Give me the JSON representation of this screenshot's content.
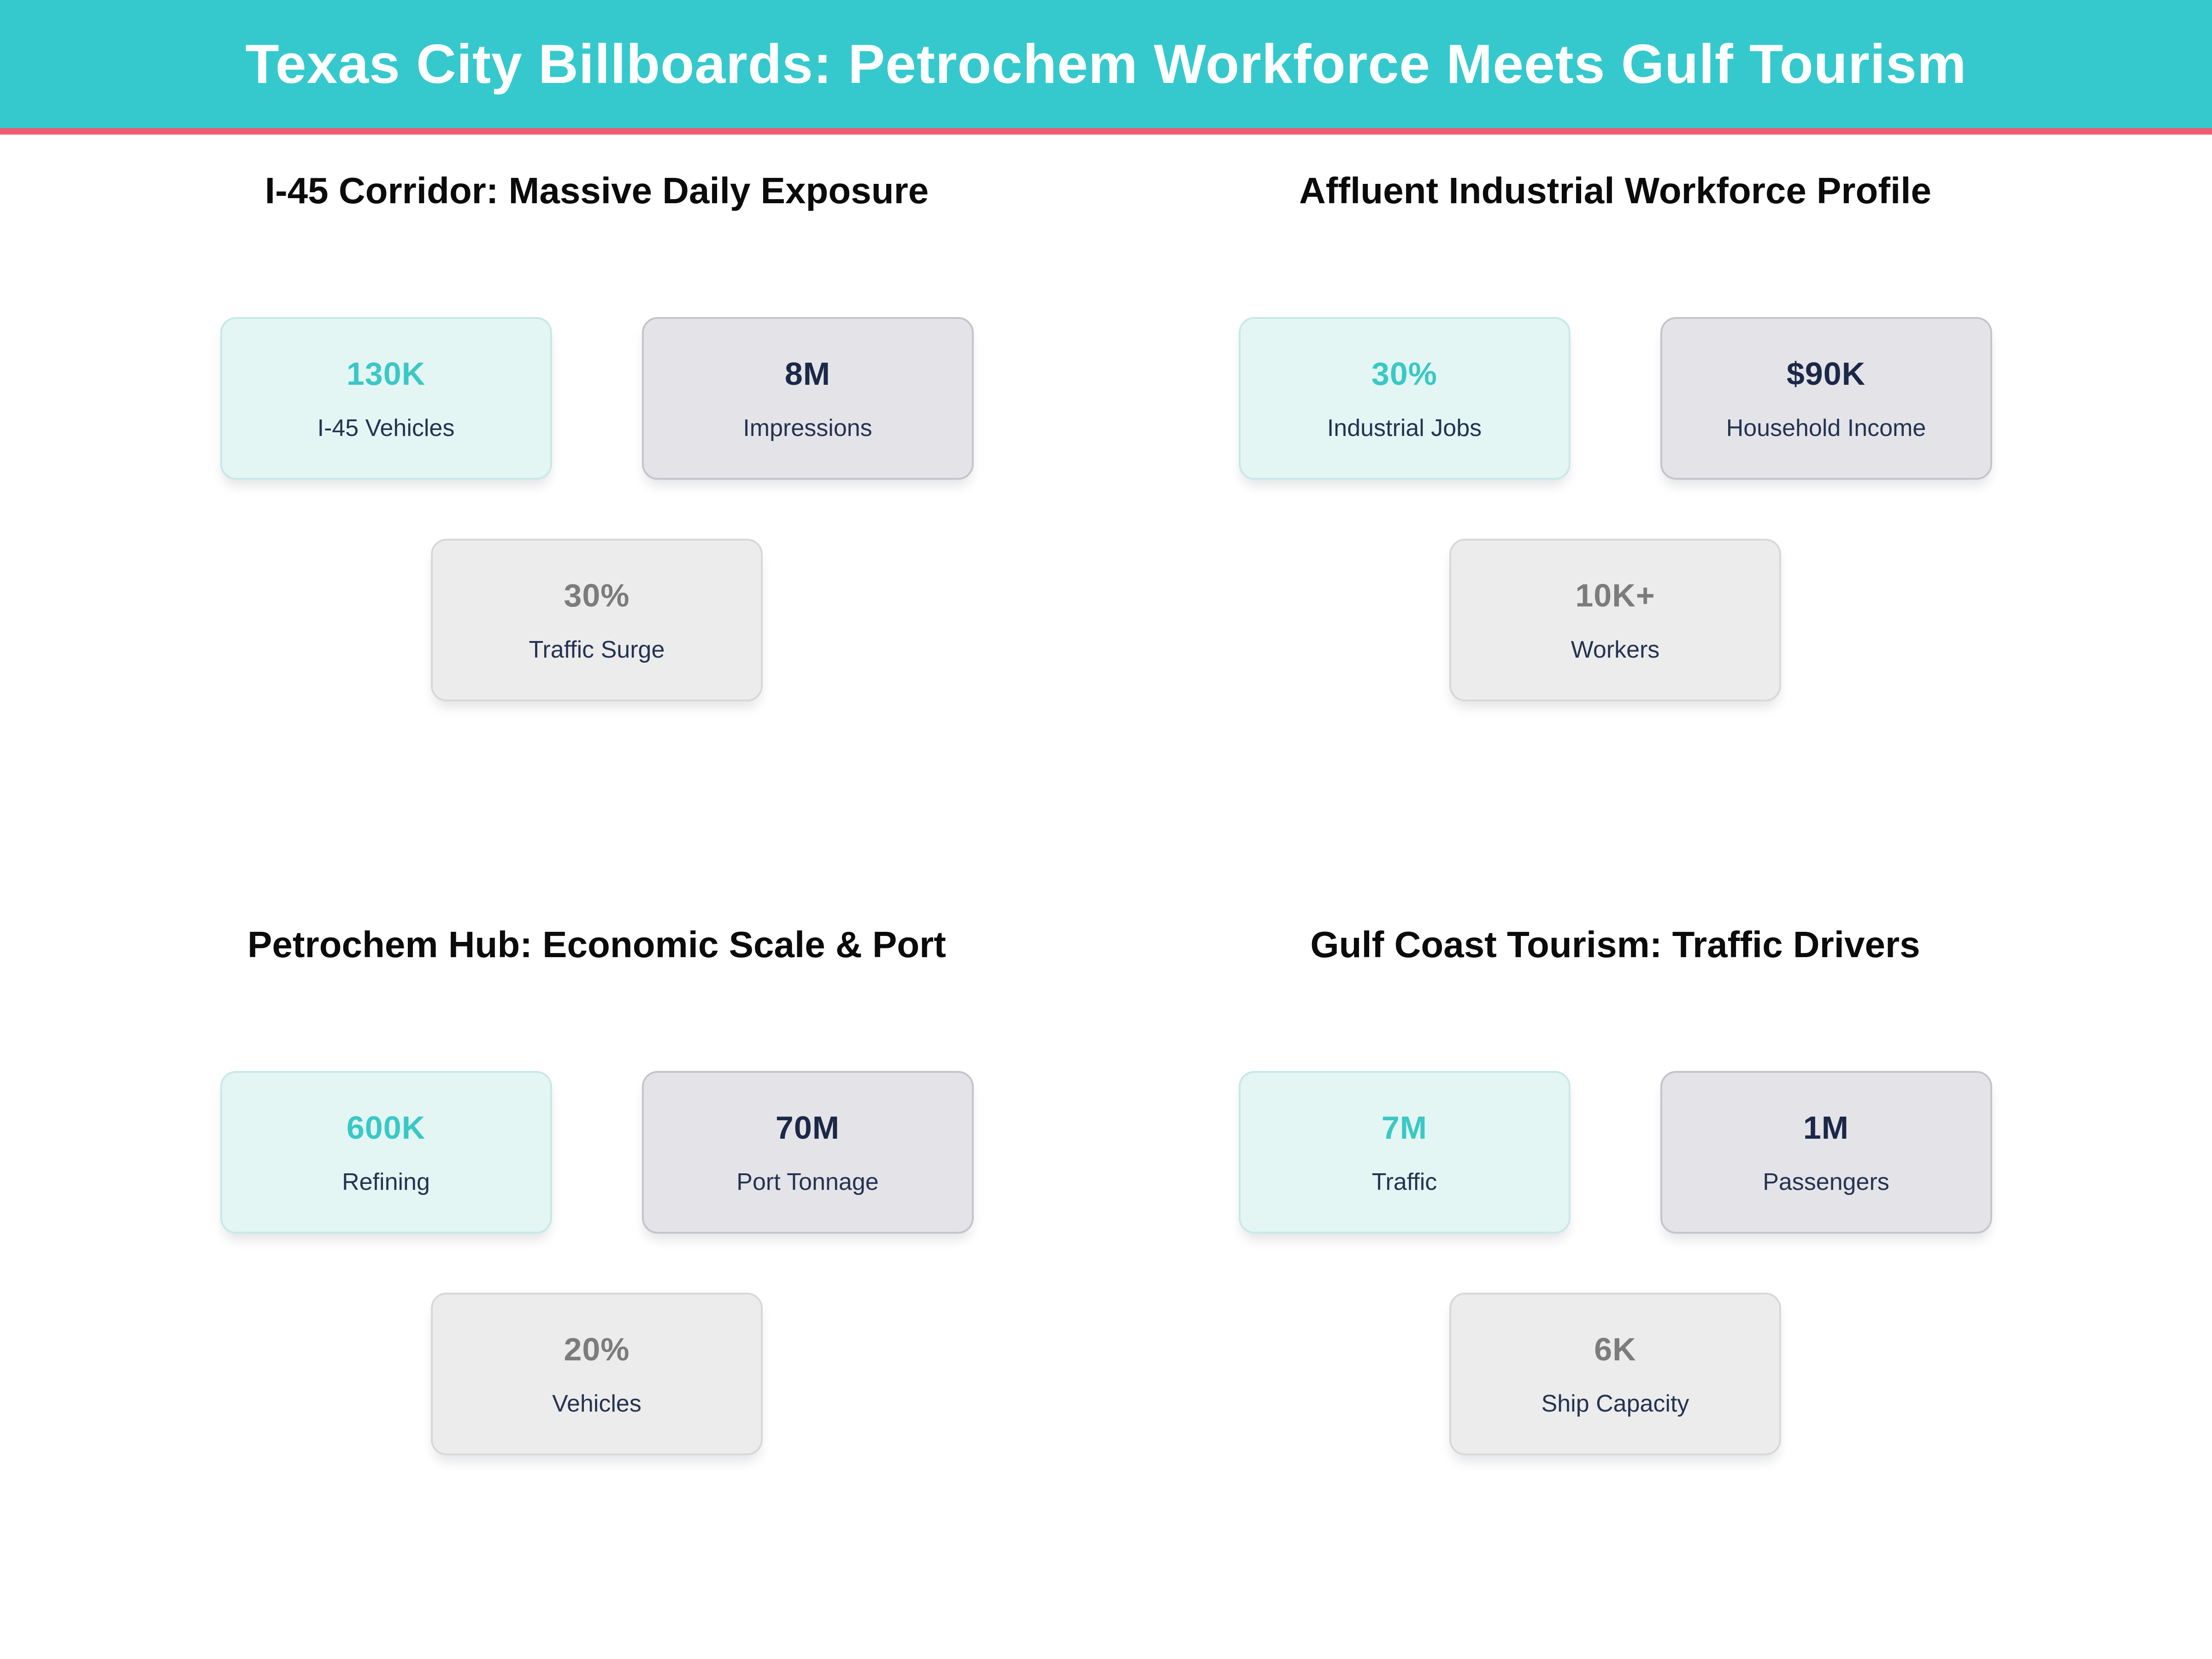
{
  "header": {
    "title": "Texas City Billboards: Petrochem Workforce Meets Gulf Tourism"
  },
  "sections": [
    {
      "title": "I-45 Corridor: Massive Daily Exposure",
      "cards": [
        {
          "value": "130K",
          "label": "I-45 Vehicles"
        },
        {
          "value": "8M",
          "label": "Impressions"
        },
        {
          "value": "30%",
          "label": "Traffic Surge"
        }
      ]
    },
    {
      "title": "Affluent Industrial Workforce Profile",
      "cards": [
        {
          "value": "30%",
          "label": "Industrial Jobs"
        },
        {
          "value": "$90K",
          "label": "Household Income"
        },
        {
          "value": "10K+",
          "label": "Workers"
        }
      ]
    },
    {
      "title": "Petrochem Hub: Economic Scale & Port",
      "cards": [
        {
          "value": "600K",
          "label": "Refining"
        },
        {
          "value": "70M",
          "label": "Port Tonnage"
        },
        {
          "value": "20%",
          "label": "Vehicles"
        }
      ]
    },
    {
      "title": "Gulf Coast Tourism: Traffic Drivers",
      "cards": [
        {
          "value": "7M",
          "label": "Traffic"
        },
        {
          "value": "1M",
          "label": "Passengers"
        },
        {
          "value": "6K",
          "label": "Ship Capacity"
        }
      ]
    }
  ],
  "colors": {
    "header_bg": "#35c9cd",
    "accent_pink": "#ee5c73",
    "title_color": "#0b0b0b",
    "teal_value": "#3bc8c5",
    "navy_value": "#1c2848",
    "gray_value": "#7c7c7c",
    "label_navy": "#253252",
    "teal_card_bg": "#e3f6f4",
    "teal_card_border": "#c7e9e6",
    "slate_card_bg": "#e4e4e8",
    "slate_card_border": "#c4c5cb",
    "muted_card_bg": "#ececec",
    "muted_card_border": "#d8d8d8"
  },
  "chart_data": {
    "type": "table",
    "title": "Texas City Billboards: Petrochem Workforce Meets Gulf Tourism",
    "groups": [
      {
        "title": "I-45 Corridor: Massive Daily Exposure",
        "stats": [
          {
            "label": "I-45 Vehicles",
            "display": "130K",
            "value": 130000
          },
          {
            "label": "Impressions",
            "display": "8M",
            "value": 8000000
          },
          {
            "label": "Traffic Surge",
            "display": "30%",
            "value": 30
          }
        ]
      },
      {
        "title": "Affluent Industrial Workforce Profile",
        "stats": [
          {
            "label": "Industrial Jobs",
            "display": "30%",
            "value": 30
          },
          {
            "label": "Household Income",
            "display": "$90K",
            "value": 90000
          },
          {
            "label": "Workers",
            "display": "10K+",
            "value": 10000
          }
        ]
      },
      {
        "title": "Petrochem Hub: Economic Scale & Port",
        "stats": [
          {
            "label": "Refining",
            "display": "600K",
            "value": 600000
          },
          {
            "label": "Port Tonnage",
            "display": "70M",
            "value": 70000000
          },
          {
            "label": "Vehicles",
            "display": "20%",
            "value": 20
          }
        ]
      },
      {
        "title": "Gulf Coast Tourism: Traffic Drivers",
        "stats": [
          {
            "label": "Traffic",
            "display": "7M",
            "value": 7000000
          },
          {
            "label": "Passengers",
            "display": "1M",
            "value": 1000000
          },
          {
            "label": "Ship Capacity",
            "display": "6K",
            "value": 6000
          }
        ]
      }
    ]
  }
}
